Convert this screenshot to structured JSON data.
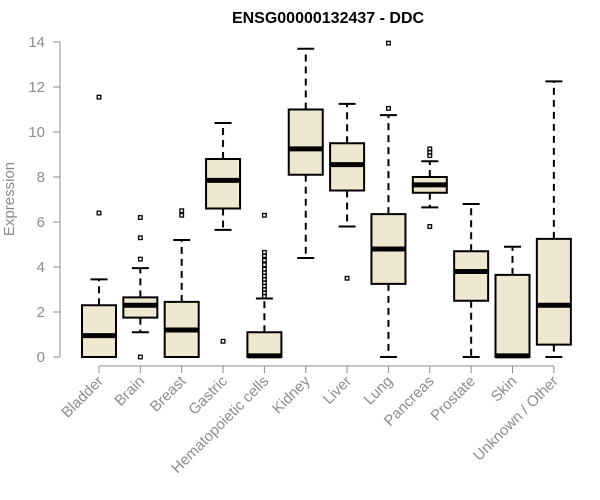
{
  "chart_data": {
    "type": "boxplot",
    "title": "ENSG00000132437 - DDC",
    "xlabel": "",
    "ylabel": "Expression",
    "ylim": [
      0,
      14
    ],
    "yticks": [
      0,
      2,
      4,
      6,
      8,
      10,
      12,
      14
    ],
    "grid": false,
    "colors": {
      "box_fill": "#efe8d1",
      "stroke": "#000000",
      "axis": "#8c8c8c"
    },
    "categories": [
      "Bladder",
      "Brain",
      "Breast",
      "Gastric",
      "Hematopoietic cells",
      "Kidney",
      "Liver",
      "Lung",
      "Pancreas",
      "Prostate",
      "Skin",
      "Unknown / Other"
    ],
    "boxes": [
      {
        "name": "Bladder",
        "whisker_low": 0.0,
        "q1": 0.0,
        "median": 0.95,
        "q3": 2.3,
        "whisker_high": 3.45,
        "outliers": [
          6.4,
          11.55
        ]
      },
      {
        "name": "Brain",
        "whisker_low": 1.1,
        "q1": 1.75,
        "median": 2.3,
        "q3": 2.65,
        "whisker_high": 3.95,
        "outliers": [
          0.0,
          4.35,
          5.3,
          6.2
        ]
      },
      {
        "name": "Breast",
        "whisker_low": 0.0,
        "q1": 0.0,
        "median": 1.2,
        "q3": 2.45,
        "whisker_high": 5.2,
        "outliers": [
          6.3,
          6.5
        ]
      },
      {
        "name": "Gastric",
        "whisker_low": 5.65,
        "q1": 6.6,
        "median": 7.85,
        "q3": 8.8,
        "whisker_high": 10.4,
        "outliers": [
          0.7
        ]
      },
      {
        "name": "Hematopoietic cells",
        "whisker_low": 0.0,
        "q1": 0.0,
        "median": 0.05,
        "q3": 1.1,
        "whisker_high": 2.6,
        "outliers": [
          2.7,
          2.85,
          3.0,
          3.15,
          3.3,
          3.45,
          3.6,
          3.75,
          3.9,
          4.1,
          4.3,
          4.5,
          4.65,
          6.3
        ]
      },
      {
        "name": "Kidney",
        "whisker_low": 4.4,
        "q1": 8.1,
        "median": 9.25,
        "q3": 11.0,
        "whisker_high": 13.7,
        "outliers": []
      },
      {
        "name": "Liver",
        "whisker_low": 5.8,
        "q1": 7.4,
        "median": 8.55,
        "q3": 9.5,
        "whisker_high": 11.25,
        "outliers": [
          3.5
        ]
      },
      {
        "name": "Lung",
        "whisker_low": 0.0,
        "q1": 3.25,
        "median": 4.8,
        "q3": 6.35,
        "whisker_high": 10.75,
        "outliers": [
          11.05,
          13.95
        ]
      },
      {
        "name": "Pancreas",
        "whisker_low": 6.65,
        "q1": 7.3,
        "median": 7.65,
        "q3": 8.0,
        "whisker_high": 8.7,
        "outliers": [
          5.8,
          8.95,
          9.1,
          9.25
        ]
      },
      {
        "name": "Prostate",
        "whisker_low": 0.0,
        "q1": 2.5,
        "median": 3.8,
        "q3": 4.7,
        "whisker_high": 6.8,
        "outliers": []
      },
      {
        "name": "Skin",
        "whisker_low": 0.0,
        "q1": 0.0,
        "median": 0.05,
        "q3": 3.65,
        "whisker_high": 4.9,
        "outliers": []
      },
      {
        "name": "Unknown / Other",
        "whisker_low": 0.0,
        "q1": 0.55,
        "median": 2.3,
        "q3": 5.25,
        "whisker_high": 12.25,
        "outliers": []
      }
    ]
  }
}
